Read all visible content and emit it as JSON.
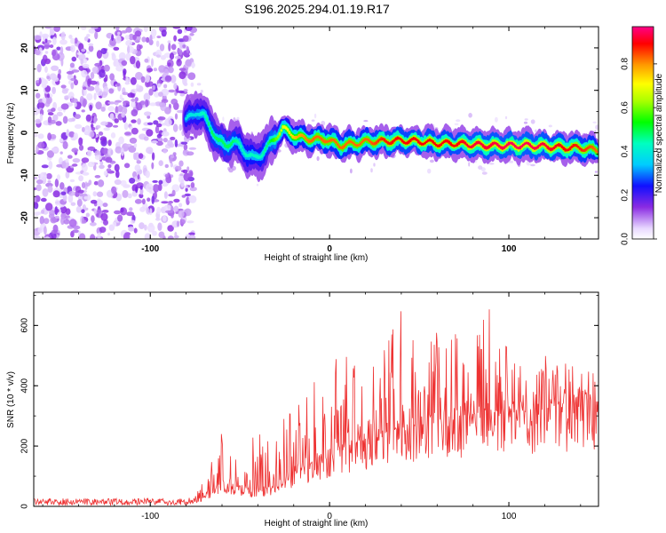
{
  "chart_data": [
    {
      "type": "heatmap",
      "title": "S196.2025.294.01.19.R17",
      "xlabel": "Height of straight line (km)",
      "ylabel": "Frequency (Hz)",
      "xlim": [
        -165,
        150
      ],
      "ylim": [
        -25,
        25
      ],
      "xticks": [
        -100,
        0,
        100
      ],
      "yticks": [
        -20,
        -10,
        0,
        10,
        20
      ],
      "colorbar": {
        "label": "Normalized spectral amplitude",
        "range": [
          0,
          0.97
        ],
        "ticks": [
          0.0,
          0.2,
          0.4,
          0.6,
          0.8
        ]
      },
      "noise_region_km": [
        -165,
        -80
      ],
      "ridge": {
        "x": [
          -80,
          -74,
          -70,
          -66,
          -62,
          -58,
          -54,
          -50,
          -46,
          -42,
          -38,
          -34,
          -30,
          -26,
          -22,
          -18,
          -10,
          -2,
          6,
          14,
          22,
          30,
          40,
          50,
          60,
          70,
          80,
          90,
          100,
          110,
          120,
          130,
          140,
          148
        ],
        "y": [
          3,
          5,
          4,
          1,
          -2,
          -3,
          -2,
          -3,
          -5,
          -6,
          -5,
          -3,
          -1,
          1,
          0,
          -1,
          -1.5,
          -1.5,
          -3,
          -2.5,
          -2,
          -2,
          -1.8,
          -2,
          -2.5,
          -2.5,
          -2.8,
          -3,
          -3,
          -3,
          -3.2,
          -3.5,
          -3.5,
          -4
        ],
        "amplitude": [
          0.4,
          0.4,
          0.45,
          0.5,
          0.5,
          0.5,
          0.5,
          0.45,
          0.45,
          0.45,
          0.45,
          0.5,
          0.6,
          0.7,
          0.75,
          0.8,
          0.85,
          0.85,
          0.85,
          0.85,
          0.85,
          0.9,
          0.92,
          0.92,
          0.92,
          0.92,
          0.95,
          0.95,
          0.97,
          0.97,
          0.95,
          0.92,
          0.9,
          0.85
        ]
      }
    },
    {
      "type": "line",
      "xlabel": "Height of straight line (km)",
      "ylabel": "SNR (10 * v/v)",
      "xlim": [
        -165,
        150
      ],
      "ylim": [
        0,
        710
      ],
      "xticks": [
        -100,
        0,
        100
      ],
      "yticks": [
        0,
        200,
        400,
        600
      ],
      "line_color": "#ee3333",
      "envelope": {
        "x": [
          -165,
          -100,
          -80,
          -75,
          -70,
          -65,
          -60,
          -55,
          -50,
          -45,
          -40,
          -35,
          -30,
          -25,
          -20,
          -10,
          0,
          10,
          20,
          30,
          40,
          50,
          60,
          70,
          80,
          90,
          100,
          110,
          120,
          130,
          140,
          150
        ],
        "baseline": [
          12,
          12,
          12,
          16,
          30,
          50,
          70,
          70,
          60,
          55,
          55,
          60,
          70,
          90,
          110,
          140,
          170,
          200,
          220,
          240,
          260,
          270,
          280,
          290,
          300,
          305,
          310,
          315,
          320,
          325,
          330,
          335
        ],
        "peak": [
          25,
          22,
          25,
          40,
          90,
          170,
          270,
          200,
          170,
          220,
          240,
          250,
          250,
          300,
          330,
          400,
          480,
          520,
          530,
          580,
          660,
          600,
          620,
          620,
          600,
          660,
          560,
          530,
          500,
          480,
          470,
          450
        ]
      }
    }
  ]
}
